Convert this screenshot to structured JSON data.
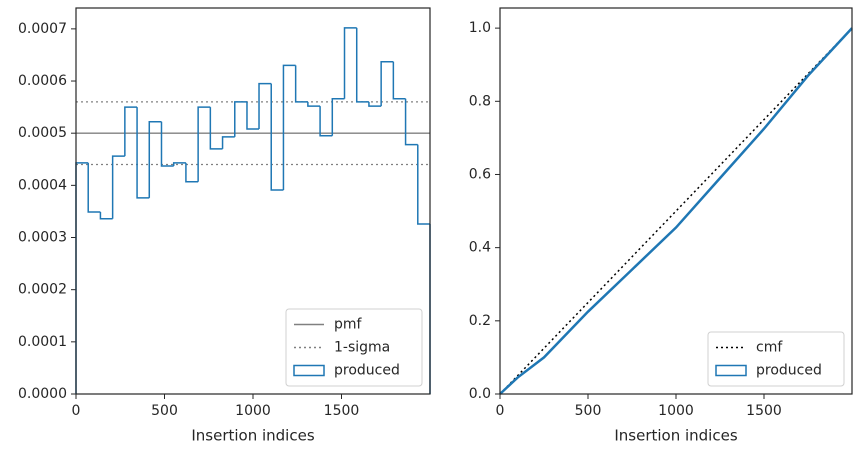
{
  "chart_data": [
    {
      "type": "histogram",
      "xlabel": "Insertion indices",
      "bins": [
        0,
        69,
        138,
        207,
        276,
        345,
        414,
        483,
        552,
        621,
        690,
        759,
        828,
        897,
        966,
        1034,
        1103,
        1172,
        1241,
        1310,
        1379,
        1448,
        1517,
        1586,
        1655,
        1724,
        1793,
        1862,
        1931,
        2000
      ],
      "series": [
        {
          "name": "produced",
          "color": "#1f77b4",
          "style": "step",
          "values": [
            0.000443,
            0.000349,
            0.000336,
            0.000456,
            0.00055,
            0.000376,
            0.000522,
            0.000437,
            0.000443,
            0.000407,
            0.00055,
            0.00047,
            0.000493,
            0.00056,
            0.000508,
            0.000595,
            0.000391,
            0.00063,
            0.00056,
            0.000552,
            0.000495,
            0.000566,
            0.000702,
            0.00056,
            0.000552,
            0.000637,
            0.000566,
            0.000478,
            0.000326
          ]
        }
      ],
      "reference_lines": [
        {
          "name": "pmf",
          "color": "#808080",
          "style": "solid",
          "values": [
            0.0005
          ]
        },
        {
          "name": "1-sigma",
          "color": "#808080",
          "style": "dotted",
          "values": [
            0.00044,
            0.00056
          ]
        }
      ],
      "xlim": [
        0,
        2000
      ],
      "ylim": [
        0,
        0.00074
      ],
      "xticks": [
        0,
        500,
        1000,
        1500
      ],
      "yticks": [
        {
          "value": 0,
          "label": "0.0000"
        },
        {
          "value": 0.0001,
          "label": "0.0001"
        },
        {
          "value": 0.0002,
          "label": "0.0002"
        },
        {
          "value": 0.0003,
          "label": "0.0003"
        },
        {
          "value": 0.0004,
          "label": "0.0004"
        },
        {
          "value": 0.0005,
          "label": "0.0005"
        },
        {
          "value": 0.0006,
          "label": "0.0006"
        },
        {
          "value": 0.0007,
          "label": "0.0007"
        }
      ],
      "legend": "lower right"
    },
    {
      "type": "line",
      "xlabel": "Insertion indices",
      "series": [
        {
          "name": "cmf",
          "color": "#000000",
          "style": "dotted",
          "x": [
            0,
            2000
          ],
          "values": [
            0,
            1
          ]
        },
        {
          "name": "produced",
          "color": "#1f77b4",
          "style": "step",
          "x": [
            0,
            100,
            250,
            500,
            750,
            1000,
            1250,
            1500,
            1750,
            2000
          ],
          "values": [
            0,
            0.045,
            0.1,
            0.225,
            0.34,
            0.455,
            0.59,
            0.725,
            0.87,
            1.0
          ]
        }
      ],
      "xlim": [
        0,
        2000
      ],
      "ylim": [
        0,
        1.055
      ],
      "xticks": [
        0,
        500,
        1000,
        1500
      ],
      "yticks": [
        {
          "value": 0,
          "label": "0.0"
        },
        {
          "value": 0.2,
          "label": "0.2"
        },
        {
          "value": 0.4,
          "label": "0.4"
        },
        {
          "value": 0.6,
          "label": "0.6"
        },
        {
          "value": 0.8,
          "label": "0.8"
        },
        {
          "value": 1.0,
          "label": "1.0"
        }
      ],
      "legend": "lower right"
    }
  ]
}
